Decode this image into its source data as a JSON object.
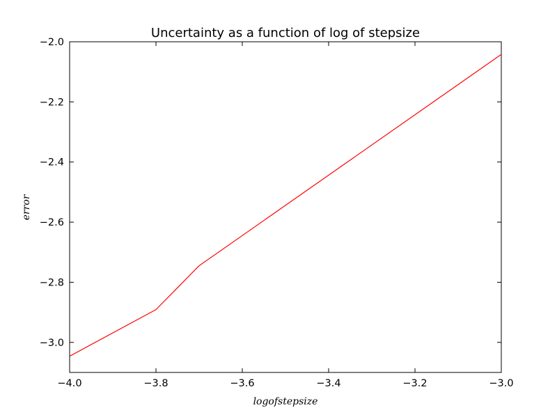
{
  "chart_data": {
    "type": "line",
    "title": "Uncertainty as a function of log of stepsize",
    "xlabel": "logofstepsize",
    "ylabel": "error",
    "xlim": [
      -4.0,
      -3.0
    ],
    "ylim": [
      -3.1,
      -2.0
    ],
    "xticks": [
      -4.0,
      -3.8,
      -3.6,
      -3.4,
      -3.2,
      -3.0
    ],
    "xtick_labels": [
      "−4.0",
      "−3.8",
      "−3.6",
      "−3.4",
      "−3.2",
      "−3.0"
    ],
    "yticks": [
      -3.0,
      -2.8,
      -2.6,
      -2.4,
      -2.2,
      -2.0
    ],
    "ytick_labels": [
      "−3.0",
      "−2.8",
      "−2.6",
      "−2.4",
      "−2.2",
      "−2.0"
    ],
    "grid": false,
    "series": [
      {
        "color": "#ff0000",
        "x": [
          -4.0,
          -3.8,
          -3.7,
          -3.0
        ],
        "y": [
          -3.046,
          -2.891,
          -2.745,
          -2.042
        ]
      }
    ]
  }
}
